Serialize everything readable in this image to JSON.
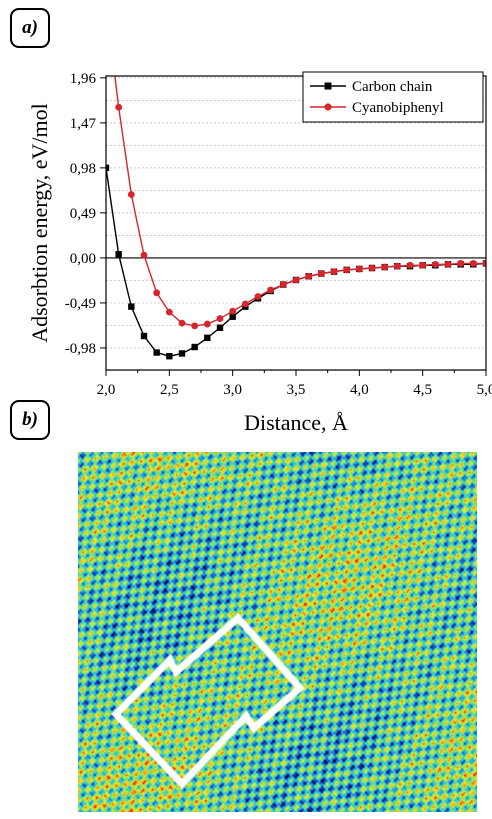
{
  "panel_a_label": "a)",
  "panel_b_label": "b)",
  "chart_data": {
    "type": "line",
    "title": "",
    "xlabel": "Distance, Å",
    "ylabel": "Adsorbtion energy, eV/mol",
    "xlim": [
      2.0,
      5.0
    ],
    "ylim": [
      -1.22,
      1.98
    ],
    "x_ticks": [
      "2,0",
      "2,5",
      "3,0",
      "3,5",
      "4,0",
      "4,5",
      "5,0"
    ],
    "y_ticks": [
      "1,96",
      "1,47",
      "0,98",
      "0,49",
      "0,00",
      "-0,49",
      "-0,98"
    ],
    "grid": "horizontal dashed",
    "legend_position": "top-right",
    "series": [
      {
        "name": "Carbon chain",
        "color": "#000000",
        "marker": "square",
        "x": [
          2.0,
          2.1,
          2.2,
          2.3,
          2.4,
          2.5,
          2.6,
          2.7,
          2.8,
          2.9,
          3.0,
          3.1,
          3.2,
          3.3,
          3.4,
          3.5,
          3.6,
          3.7,
          3.8,
          3.9,
          4.0,
          4.1,
          4.2,
          4.3,
          4.4,
          4.5,
          4.6,
          4.7,
          4.8,
          4.9,
          5.0
        ],
        "y": [
          0.98,
          0.04,
          -0.53,
          -0.85,
          -1.03,
          -1.07,
          -1.04,
          -0.97,
          -0.87,
          -0.76,
          -0.64,
          -0.53,
          -0.44,
          -0.36,
          -0.29,
          -0.24,
          -0.2,
          -0.17,
          -0.15,
          -0.13,
          -0.12,
          -0.11,
          -0.1,
          -0.09,
          -0.09,
          -0.08,
          -0.08,
          -0.07,
          -0.07,
          -0.07,
          -0.06
        ]
      },
      {
        "name": "Cyanobiphenyl",
        "color": "#d6252b",
        "marker": "circle",
        "x": [
          2.1,
          2.2,
          2.3,
          2.4,
          2.5,
          2.6,
          2.7,
          2.8,
          2.9,
          3.0,
          3.1,
          3.2,
          3.3,
          3.4,
          3.5,
          3.6,
          3.7,
          3.8,
          3.9,
          4.0,
          4.1,
          4.2,
          4.3,
          4.4,
          4.5,
          4.6,
          4.7,
          4.8,
          4.9,
          5.0
        ],
        "y": [
          1.64,
          0.69,
          0.03,
          -0.38,
          -0.59,
          -0.71,
          -0.74,
          -0.72,
          -0.66,
          -0.58,
          -0.5,
          -0.42,
          -0.35,
          -0.29,
          -0.24,
          -0.2,
          -0.17,
          -0.15,
          -0.13,
          -0.12,
          -0.11,
          -0.1,
          -0.09,
          -0.08,
          -0.08,
          -0.07,
          -0.07,
          -0.06,
          -0.06,
          -0.06
        ]
      }
    ],
    "curve_start": {
      "x": 2.07,
      "y": 1.98
    }
  },
  "stm_image": {
    "palette": [
      "#0a0a2e",
      "#0f2f9a",
      "#1f6fe0",
      "#2fc3e6",
      "#4fdc9a",
      "#a8e84a",
      "#f2e628",
      "#f29a1e",
      "#e32a1a"
    ],
    "outline_color": "#ffffff"
  }
}
